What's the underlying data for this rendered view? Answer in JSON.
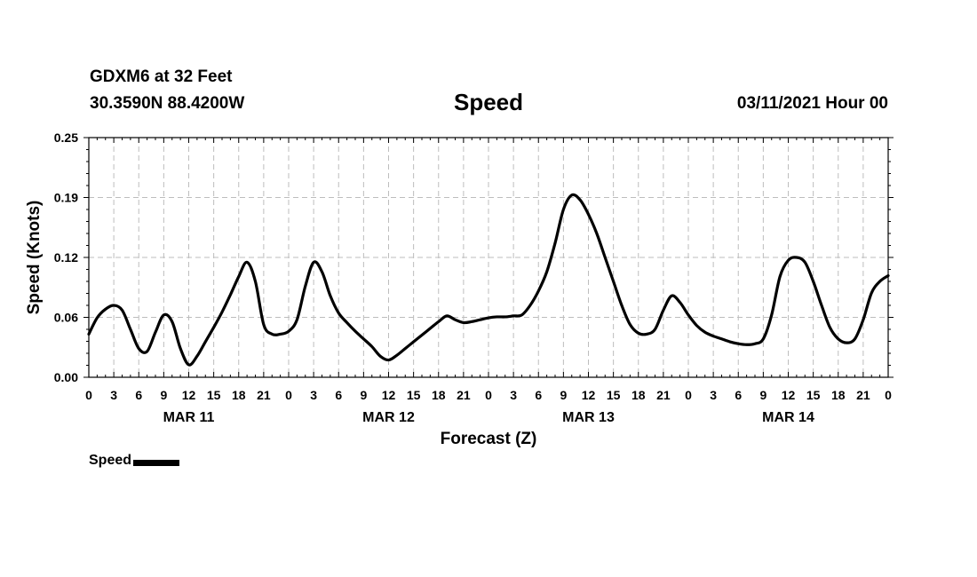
{
  "header": {
    "station": "GDXM6 at 32 Feet",
    "coords": "30.3590N 88.4200W",
    "title": "Speed",
    "datetime": "03/11/2021 Hour 00"
  },
  "chart_data": {
    "type": "line",
    "title": "Speed",
    "xlabel": "Forecast (Z)",
    "ylabel": "Speed (Knots)",
    "x_unit": "hours from 03/11/2021 00Z",
    "xlim": [
      0,
      96
    ],
    "ylim": [
      0,
      0.25
    ],
    "y_ticks": [
      "0.00",
      "0.06",
      "0.12",
      "0.19",
      "0.25"
    ],
    "y_tick_values": [
      0,
      0.0625,
      0.125,
      0.1875,
      0.25
    ],
    "x_tick_labels": [
      "0",
      "3",
      "6",
      "9",
      "12",
      "15",
      "18",
      "21",
      "0",
      "3",
      "6",
      "9",
      "12",
      "15",
      "18",
      "21",
      "0",
      "3",
      "6",
      "9",
      "12",
      "15",
      "18",
      "21",
      "0",
      "3",
      "6",
      "9",
      "12",
      "15",
      "18",
      "21",
      "0"
    ],
    "date_labels": [
      {
        "label": "MAR 11",
        "hour": 12
      },
      {
        "label": "MAR 12",
        "hour": 36
      },
      {
        "label": "MAR 13",
        "hour": 60
      },
      {
        "label": "MAR 14",
        "hour": 84
      }
    ],
    "grid": true,
    "legend": "bottom-left",
    "series": [
      {
        "name": "Speed",
        "color": "#000000",
        "x": [
          0,
          1,
          2,
          3,
          4,
          5,
          6,
          7,
          8,
          9,
          10,
          11,
          12,
          13,
          14,
          15,
          16,
          17,
          18,
          19,
          20,
          21,
          22,
          23,
          24,
          25,
          26,
          27,
          28,
          29,
          30,
          31,
          32,
          33,
          34,
          35,
          36,
          37,
          38,
          39,
          40,
          41,
          42,
          43,
          44,
          45,
          46,
          47,
          48,
          49,
          50,
          51,
          52,
          53,
          54,
          55,
          56,
          57,
          58,
          59,
          60,
          61,
          62,
          63,
          64,
          65,
          66,
          67,
          68,
          69,
          70,
          71,
          72,
          73,
          74,
          75,
          76,
          77,
          78,
          79,
          80,
          81,
          82,
          83,
          84,
          85,
          86,
          87,
          88,
          89,
          90,
          91,
          92,
          93,
          94,
          95,
          96
        ],
        "values": [
          0.045,
          0.062,
          0.071,
          0.075,
          0.07,
          0.05,
          0.03,
          0.027,
          0.047,
          0.065,
          0.058,
          0.03,
          0.013,
          0.022,
          0.037,
          0.052,
          0.068,
          0.086,
          0.105,
          0.12,
          0.1,
          0.055,
          0.045,
          0.045,
          0.048,
          0.06,
          0.095,
          0.12,
          0.11,
          0.085,
          0.067,
          0.057,
          0.048,
          0.04,
          0.032,
          0.022,
          0.018,
          0.023,
          0.03,
          0.037,
          0.044,
          0.051,
          0.058,
          0.064,
          0.06,
          0.057,
          0.058,
          0.06,
          0.062,
          0.063,
          0.063,
          0.064,
          0.065,
          0.075,
          0.09,
          0.11,
          0.14,
          0.175,
          0.19,
          0.185,
          0.17,
          0.15,
          0.125,
          0.1,
          0.075,
          0.055,
          0.046,
          0.045,
          0.05,
          0.07,
          0.085,
          0.078,
          0.065,
          0.054,
          0.047,
          0.043,
          0.04,
          0.037,
          0.035,
          0.034,
          0.035,
          0.04,
          0.065,
          0.105,
          0.122,
          0.125,
          0.12,
          0.1,
          0.075,
          0.052,
          0.04,
          0.036,
          0.04,
          0.06,
          0.088,
          0.1,
          0.106
        ]
      }
    ]
  }
}
